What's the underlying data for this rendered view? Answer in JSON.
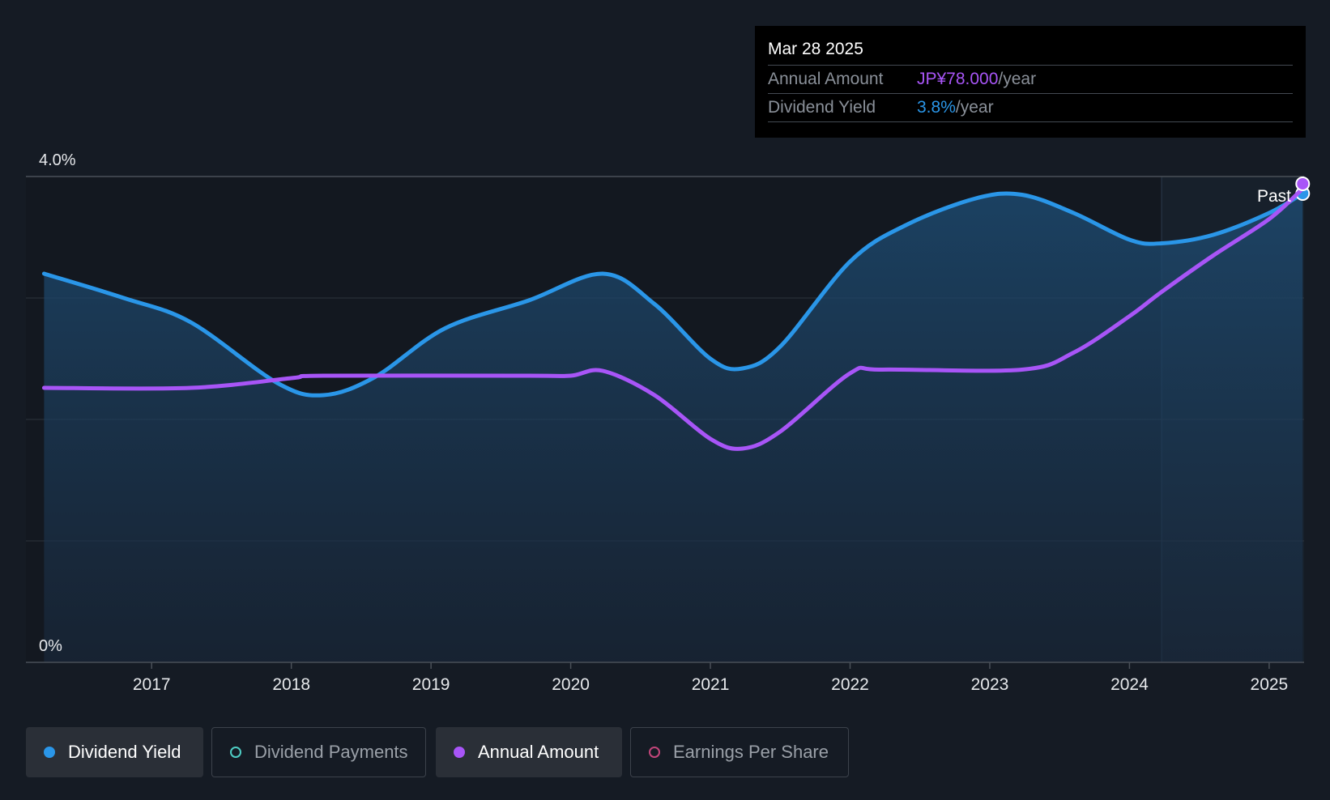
{
  "tooltip": {
    "date": "Mar 28 2025",
    "rows": [
      {
        "label": "Annual Amount",
        "value": "JP¥78.000",
        "unit": "/year",
        "color": "#a855f7"
      },
      {
        "label": "Dividend Yield",
        "value": "3.8%",
        "unit": "/year",
        "color": "#2a96e8"
      }
    ]
  },
  "legend": [
    {
      "label": "Dividend Yield",
      "color": "#2a96e8",
      "style": "filled",
      "active": true
    },
    {
      "label": "Dividend Payments",
      "color": "#4ecdc4",
      "style": "hollow",
      "active": false
    },
    {
      "label": "Annual Amount",
      "color": "#a855f7",
      "style": "filled",
      "active": true
    },
    {
      "label": "Earnings Per Share",
      "color": "#c2457a",
      "style": "hollow",
      "active": false
    }
  ],
  "chart_data": {
    "type": "line",
    "title": "",
    "xlabel": "",
    "ylabel": "",
    "xlim": [
      2016.1,
      2025.25
    ],
    "ylim": [
      0,
      4.0
    ],
    "y_tick_labels": [
      {
        "value": 4.0,
        "label": "4.0%"
      },
      {
        "value": 0,
        "label": "0%"
      }
    ],
    "y_gridlines": [
      1.0,
      2.0,
      3.0,
      4.0
    ],
    "x_ticks": [
      2017,
      2018,
      2019,
      2020,
      2021,
      2022,
      2023,
      2024,
      2025
    ],
    "past_label": "Past",
    "past_start_x": 2024.23,
    "series": [
      {
        "name": "Dividend Yield",
        "color": "#2a96e8",
        "filled": true,
        "x": [
          2016.23,
          2016.8,
          2017.28,
          2017.9,
          2018.23,
          2018.6,
          2019.1,
          2019.7,
          2020.23,
          2020.6,
          2021.0,
          2021.23,
          2021.5,
          2022.0,
          2022.4,
          2022.9,
          2023.23,
          2023.6,
          2024.0,
          2024.23,
          2024.6,
          2025.0,
          2025.24
        ],
        "values": [
          3.2,
          3.0,
          2.8,
          2.3,
          2.2,
          2.35,
          2.75,
          2.98,
          3.2,
          2.95,
          2.5,
          2.42,
          2.6,
          3.3,
          3.6,
          3.82,
          3.85,
          3.7,
          3.48,
          3.45,
          3.52,
          3.7,
          3.86
        ]
      },
      {
        "name": "Annual Amount",
        "color": "#a855f7",
        "filled": false,
        "x": [
          2016.23,
          2017.28,
          2018.0,
          2018.23,
          2019.7,
          2020.0,
          2020.23,
          2020.6,
          2021.0,
          2021.23,
          2021.5,
          2022.0,
          2022.23,
          2023.23,
          2023.6,
          2024.0,
          2024.23,
          2024.6,
          2025.0,
          2025.24
        ],
        "values": [
          2.26,
          2.26,
          2.34,
          2.36,
          2.36,
          2.36,
          2.4,
          2.2,
          1.84,
          1.76,
          1.9,
          2.38,
          2.41,
          2.41,
          2.55,
          2.85,
          3.05,
          3.35,
          3.65,
          3.9
        ]
      }
    ]
  }
}
